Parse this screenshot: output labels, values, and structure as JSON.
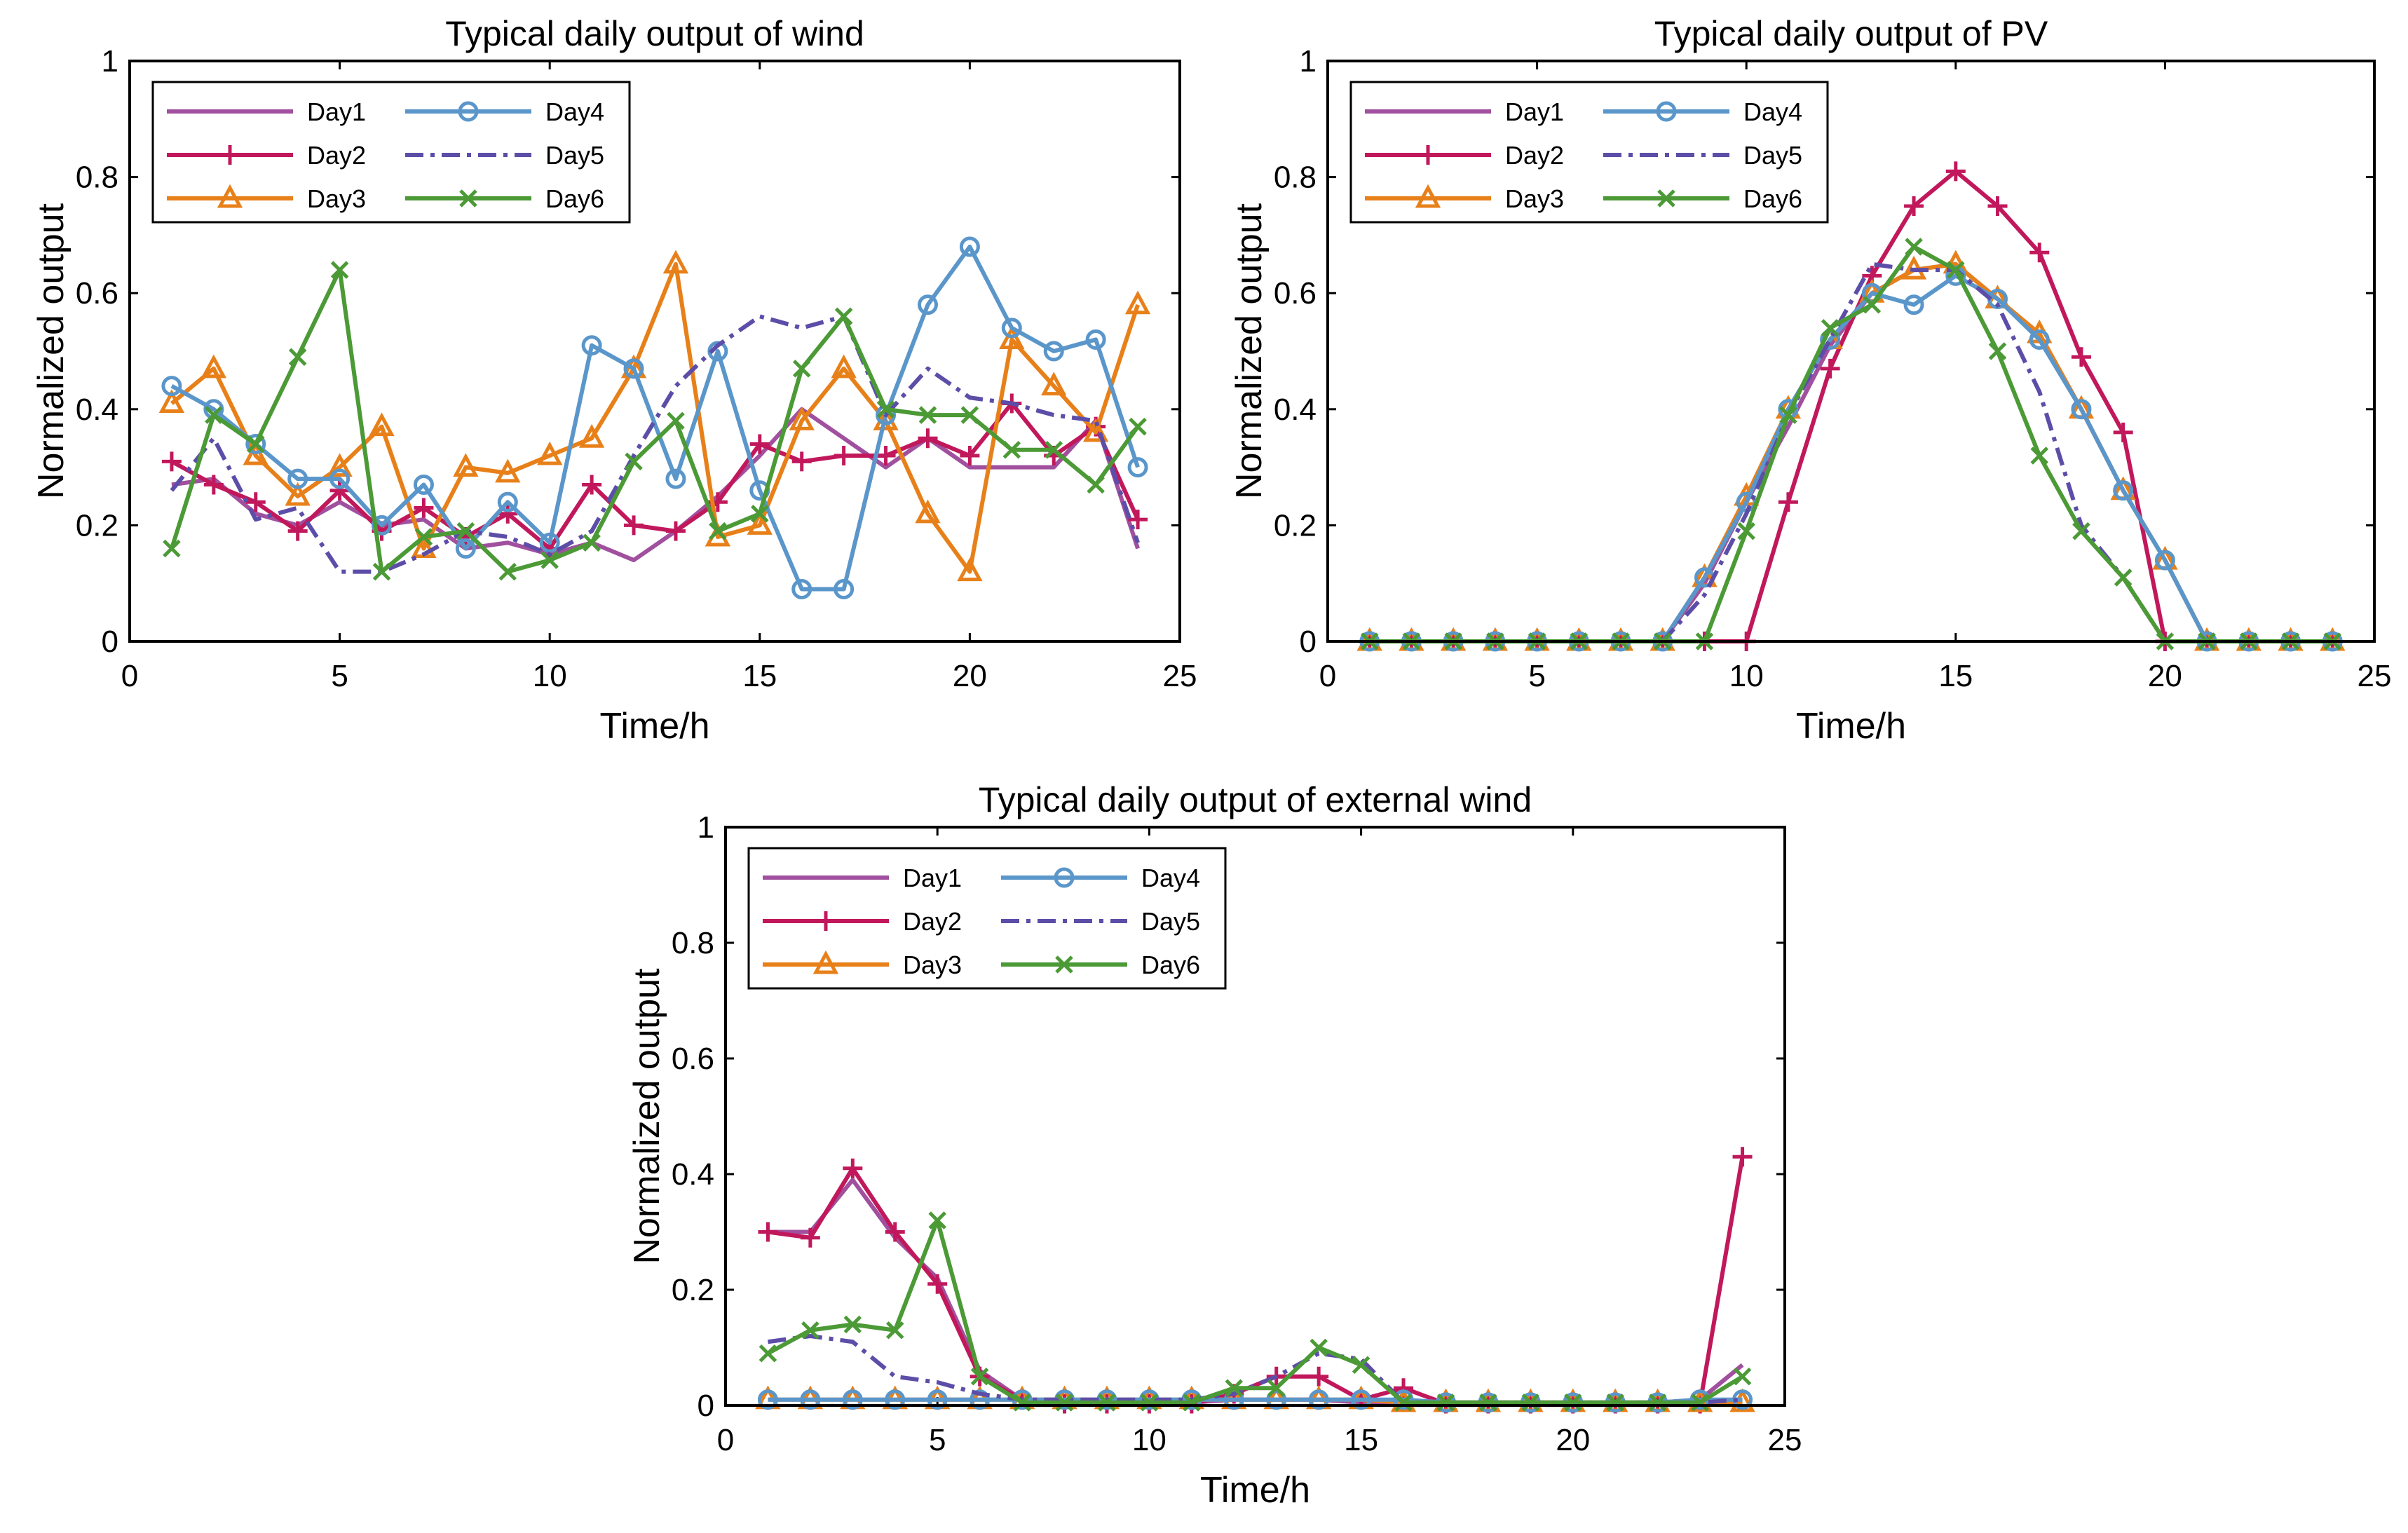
{
  "chart_data": [
    {
      "type": "line",
      "title": "Typical daily output of  wind",
      "xlabel": "Time/h",
      "ylabel": "Normalized output",
      "xlim": [
        0,
        25
      ],
      "ylim": [
        0,
        1
      ],
      "xticks": [
        "0",
        "5",
        "10",
        "15",
        "20",
        "25"
      ],
      "yticks": [
        "0",
        "0.2",
        "0.4",
        "0.6",
        "0.8",
        "1"
      ],
      "x": [
        1,
        2,
        3,
        4,
        5,
        6,
        7,
        8,
        9,
        10,
        11,
        12,
        13,
        14,
        15,
        16,
        17,
        18,
        19,
        20,
        21,
        22,
        23,
        24
      ],
      "legend": "top-left",
      "series": [
        {
          "name": "Day1",
          "values": [
            0.27,
            0.28,
            0.22,
            0.2,
            0.24,
            0.2,
            0.21,
            0.16,
            0.17,
            0.15,
            0.17,
            0.14,
            0.19,
            0.25,
            0.32,
            0.4,
            0.35,
            0.3,
            0.35,
            0.3,
            0.3,
            0.3,
            0.38,
            0.16
          ]
        },
        {
          "name": "Day2",
          "values": [
            0.31,
            0.27,
            0.24,
            0.19,
            0.26,
            0.19,
            0.23,
            0.18,
            0.22,
            0.16,
            0.27,
            0.2,
            0.19,
            0.24,
            0.34,
            0.31,
            0.32,
            0.32,
            0.35,
            0.32,
            0.41,
            0.32,
            0.37,
            0.21
          ]
        },
        {
          "name": "Day3",
          "values": [
            0.41,
            0.47,
            0.32,
            0.25,
            0.3,
            0.37,
            0.16,
            0.3,
            0.29,
            0.32,
            0.35,
            0.47,
            0.65,
            0.18,
            0.2,
            0.38,
            0.47,
            0.38,
            0.22,
            0.12,
            0.52,
            0.44,
            0.36,
            0.58
          ]
        },
        {
          "name": "Day4",
          "values": [
            0.44,
            0.4,
            0.34,
            0.28,
            0.28,
            0.2,
            0.27,
            0.16,
            0.24,
            0.17,
            0.51,
            0.47,
            0.28,
            0.5,
            0.26,
            0.09,
            0.09,
            0.39,
            0.58,
            0.68,
            0.54,
            0.5,
            0.52,
            0.3
          ]
        },
        {
          "name": "Day5",
          "values": [
            0.26,
            0.35,
            0.21,
            0.23,
            0.12,
            0.12,
            0.15,
            0.19,
            0.18,
            0.15,
            0.19,
            0.32,
            0.44,
            0.51,
            0.56,
            0.54,
            0.56,
            0.39,
            0.47,
            0.42,
            0.41,
            0.39,
            0.38,
            0.17
          ]
        },
        {
          "name": "Day6",
          "values": [
            0.16,
            0.39,
            0.34,
            0.49,
            0.64,
            0.12,
            0.18,
            0.19,
            0.12,
            0.14,
            0.17,
            0.31,
            0.38,
            0.19,
            0.22,
            0.47,
            0.56,
            0.4,
            0.39,
            0.39,
            0.33,
            0.33,
            0.27,
            0.37
          ]
        }
      ]
    },
    {
      "type": "line",
      "title": "Typical daily output of PV",
      "xlabel": "Time/h",
      "ylabel": "Normalized output",
      "xlim": [
        0,
        25
      ],
      "ylim": [
        0,
        1
      ],
      "xticks": [
        "0",
        "5",
        "10",
        "15",
        "20",
        "25"
      ],
      "yticks": [
        "0",
        "0.2",
        "0.4",
        "0.6",
        "0.8",
        "1"
      ],
      "x": [
        1,
        2,
        3,
        4,
        5,
        6,
        7,
        8,
        9,
        10,
        11,
        12,
        13,
        14,
        15,
        16,
        17,
        18,
        19,
        20,
        21,
        22,
        23,
        24
      ],
      "legend": "top-left",
      "series": [
        {
          "name": "Day1",
          "values": [
            0,
            0,
            0,
            0,
            0,
            0,
            0,
            0,
            0.1,
            0.24,
            0.37,
            0.51,
            0.6,
            0.64,
            0.65,
            0.59,
            0.53,
            0.4,
            0.26,
            0.14,
            0,
            0,
            0,
            0
          ]
        },
        {
          "name": "Day2",
          "values": [
            0,
            0,
            0,
            0,
            0,
            0,
            0,
            0,
            0,
            0,
            0.24,
            0.47,
            0.63,
            0.75,
            0.81,
            0.75,
            0.67,
            0.49,
            0.36,
            0,
            0,
            0,
            0,
            0
          ]
        },
        {
          "name": "Day3",
          "values": [
            0,
            0,
            0,
            0,
            0,
            0,
            0,
            0,
            0.11,
            0.25,
            0.4,
            0.52,
            0.6,
            0.64,
            0.65,
            0.59,
            0.53,
            0.4,
            0.26,
            0.14,
            0,
            0,
            0,
            0
          ]
        },
        {
          "name": "Day4",
          "values": [
            0,
            0,
            0,
            0,
            0,
            0,
            0,
            0,
            0.11,
            0.24,
            0.4,
            0.52,
            0.6,
            0.58,
            0.63,
            0.59,
            0.52,
            0.4,
            0.26,
            0.14,
            0,
            0,
            0,
            0
          ]
        },
        {
          "name": "Day5",
          "values": [
            0,
            0,
            0,
            0,
            0,
            0,
            0,
            0,
            0.08,
            0.22,
            0.39,
            0.52,
            0.65,
            0.64,
            0.64,
            0.58,
            0.43,
            0.2,
            0.11,
            0,
            0,
            0,
            0,
            0
          ]
        },
        {
          "name": "Day6",
          "values": [
            0,
            0,
            0,
            0,
            0,
            0,
            0,
            0,
            0,
            0.19,
            0.39,
            0.54,
            0.58,
            0.68,
            0.64,
            0.5,
            0.32,
            0.19,
            0.11,
            0,
            0,
            0,
            0,
            0
          ]
        }
      ]
    },
    {
      "type": "line",
      "title": "Typical daily output of external wind",
      "xlabel": "Time/h",
      "ylabel": "Normalized output",
      "xlim": [
        0,
        25
      ],
      "ylim": [
        0,
        1
      ],
      "xticks": [
        "0",
        "5",
        "10",
        "15",
        "20",
        "25"
      ],
      "yticks": [
        "0",
        "0.2",
        "0.4",
        "0.6",
        "0.8",
        "1"
      ],
      "x": [
        1,
        2,
        3,
        4,
        5,
        6,
        7,
        8,
        9,
        10,
        11,
        12,
        13,
        14,
        15,
        16,
        17,
        18,
        19,
        20,
        21,
        22,
        23,
        24
      ],
      "legend": "top-left",
      "series": [
        {
          "name": "Day1",
          "values": [
            0.3,
            0.3,
            0.39,
            0.29,
            0.22,
            0.06,
            0.01,
            0.005,
            0.005,
            0.005,
            0.005,
            0.01,
            0.01,
            0.01,
            0.005,
            0.005,
            0.005,
            0.005,
            0.005,
            0.005,
            0.005,
            0.005,
            0.01,
            0.07
          ]
        },
        {
          "name": "Day2",
          "values": [
            0.3,
            0.29,
            0.41,
            0.3,
            0.21,
            0.05,
            0.01,
            0.003,
            0.003,
            0.003,
            0.003,
            0.02,
            0.05,
            0.05,
            0.01,
            0.03,
            0.003,
            0.003,
            0.003,
            0.003,
            0.003,
            0.003,
            0.003,
            0.43
          ]
        },
        {
          "name": "Day3",
          "values": [
            0.01,
            0.01,
            0.01,
            0.01,
            0.01,
            0.01,
            0.01,
            0.01,
            0.01,
            0.01,
            0.01,
            0.01,
            0.01,
            0.01,
            0.01,
            0.005,
            0.005,
            0.005,
            0.005,
            0.005,
            0.005,
            0.005,
            0.005,
            0.005
          ]
        },
        {
          "name": "Day4",
          "values": [
            0.01,
            0.01,
            0.01,
            0.01,
            0.01,
            0.01,
            0.01,
            0.01,
            0.01,
            0.01,
            0.01,
            0.01,
            0.01,
            0.01,
            0.01,
            0.01,
            0.005,
            0.005,
            0.005,
            0.005,
            0.005,
            0.005,
            0.01,
            0.01
          ]
        },
        {
          "name": "Day5",
          "values": [
            0.11,
            0.12,
            0.11,
            0.05,
            0.04,
            0.02,
            0.01,
            0.01,
            0.01,
            0.01,
            0.01,
            0.02,
            0.05,
            0.09,
            0.08,
            0.005,
            0.005,
            0.005,
            0.005,
            0.005,
            0.005,
            0.005,
            0.005,
            0.01
          ]
        },
        {
          "name": "Day6",
          "values": [
            0.09,
            0.13,
            0.14,
            0.13,
            0.32,
            0.05,
            0.005,
            0.005,
            0.005,
            0.005,
            0.005,
            0.03,
            0.03,
            0.1,
            0.07,
            0.005,
            0.005,
            0.005,
            0.005,
            0.005,
            0.005,
            0.005,
            0.005,
            0.05
          ]
        }
      ]
    }
  ],
  "series_styles": [
    {
      "name": "Day1",
      "color": "#A0509E",
      "dash": "solid",
      "marker": "none"
    },
    {
      "name": "Day2",
      "color": "#C1185C",
      "dash": "solid",
      "marker": "plus"
    },
    {
      "name": "Day3",
      "color": "#E8801A",
      "dash": "solid",
      "marker": "triangle"
    },
    {
      "name": "Day4",
      "color": "#5A96CA",
      "dash": "solid",
      "marker": "circle"
    },
    {
      "name": "Day5",
      "color": "#5C4EA8",
      "dash": "dashdot",
      "marker": "none"
    },
    {
      "name": "Day6",
      "color": "#4B9A36",
      "dash": "solid",
      "marker": "x"
    }
  ]
}
